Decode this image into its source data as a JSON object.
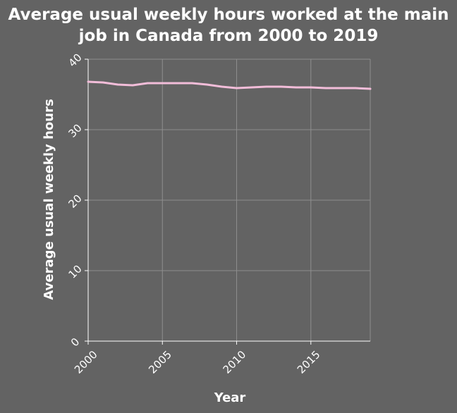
{
  "colors": {
    "background": "#636363",
    "grid": "#8e8e8e",
    "text": "#ffffff",
    "series_line": "#f2bdd9"
  },
  "chart_data": {
    "type": "line",
    "title": "Average usual weekly hours worked at the main job in Canada from 2000 to 2019",
    "xlabel": "Year",
    "ylabel": "Average usual weekly hours",
    "xlim": [
      2000,
      2019
    ],
    "ylim": [
      0,
      40
    ],
    "x_ticks": [
      2000,
      2005,
      2010,
      2015
    ],
    "y_ticks": [
      0,
      10,
      20,
      30,
      40
    ],
    "grid": true,
    "legend": "none",
    "series": [
      {
        "x": [
          2000,
          2001,
          2002,
          2003,
          2004,
          2005,
          2006,
          2007,
          2008,
          2009,
          2010,
          2011,
          2012,
          2013,
          2014,
          2015,
          2016,
          2017,
          2018,
          2019
        ],
        "y": [
          36.8,
          36.7,
          36.4,
          36.3,
          36.6,
          36.6,
          36.6,
          36.6,
          36.4,
          36.1,
          35.9,
          36.0,
          36.1,
          36.1,
          36.0,
          36.0,
          35.9,
          35.9,
          35.9,
          35.8
        ]
      }
    ]
  }
}
